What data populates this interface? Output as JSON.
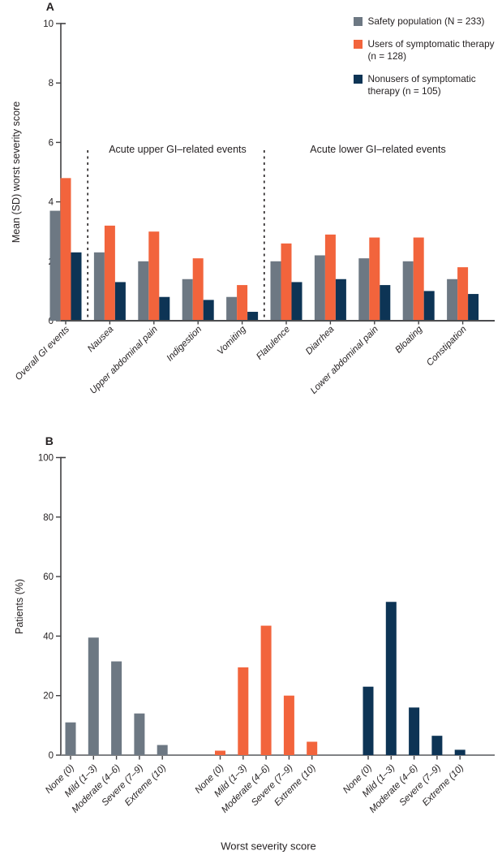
{
  "figure": {
    "colors": {
      "safety": "#6d7883",
      "users": "#f2643c",
      "nonusers": "#0d3455",
      "axis_dark": "#414042",
      "baseline_a": "#4c4d4f",
      "baseline_b": "#808285",
      "divider": "#231f20",
      "text": "#231f20"
    },
    "legend": {
      "items": [
        {
          "series": "safety",
          "lines": [
            "Safety population (N = 233)"
          ]
        },
        {
          "series": "users",
          "lines": [
            "Users of symptomatic therapy",
            "(n = 128)"
          ]
        },
        {
          "series": "nonusers",
          "lines": [
            "Nonusers of symptomatic",
            "therapy (n = 105)"
          ]
        }
      ]
    }
  },
  "chart_data": [
    {
      "panel": "A",
      "type": "bar",
      "title": "",
      "ylabel": "Mean (SD) worst severity score",
      "xlabel": "",
      "ylim": [
        0,
        10
      ],
      "yticks": [
        0,
        2,
        4,
        6,
        8,
        10
      ],
      "grid": false,
      "legend_position": "top-right",
      "categories": [
        "Overall GI events",
        "Nausea",
        "Upper abdominal pain",
        "Indigestion",
        "Vomiting",
        "Flatulence",
        "Diarrhea",
        "Lower abdominal pain",
        "Bloating",
        "Constipation"
      ],
      "series": [
        {
          "name": "Safety population (N = 233)",
          "key": "safety",
          "values": [
            3.7,
            2.3,
            2.0,
            1.4,
            0.8,
            2.0,
            2.2,
            2.1,
            2.0,
            1.4
          ]
        },
        {
          "name": "Users of symptomatic therapy (n = 128)",
          "key": "users",
          "values": [
            4.8,
            3.2,
            3.0,
            2.1,
            1.2,
            2.6,
            2.9,
            2.8,
            2.8,
            1.8
          ]
        },
        {
          "name": "Nonusers of symptomatic therapy (n = 105)",
          "key": "nonusers",
          "values": [
            2.3,
            1.3,
            0.8,
            0.7,
            0.3,
            1.3,
            1.4,
            1.2,
            1.0,
            0.9
          ]
        }
      ],
      "annotations": [
        {
          "text": "Acute upper GI–related events",
          "spans_categories": [
            "Nausea",
            "Vomiting"
          ]
        },
        {
          "text": "Acute lower GI–related events",
          "spans_categories": [
            "Flatulence",
            "Constipation"
          ]
        }
      ],
      "dividers_after_categories": [
        "Overall GI events",
        "Vomiting"
      ]
    },
    {
      "panel": "B",
      "type": "bar",
      "title": "",
      "ylabel": "Patients (%)",
      "xlabel": "Worst severity score",
      "ylim": [
        0,
        100
      ],
      "yticks": [
        0,
        20,
        40,
        60,
        80,
        100
      ],
      "grid": false,
      "layout": "each-series-as-separate-cluster",
      "categories": [
        "None (0)",
        "Mild (1–3)",
        "Moderate (4–6)",
        "Severe (7–9)",
        "Extreme (10)"
      ],
      "series": [
        {
          "name": "Safety population (N = 233)",
          "key": "safety",
          "values": [
            11,
            39.5,
            31.5,
            14,
            3.4
          ]
        },
        {
          "name": "Users of symptomatic therapy (n = 128)",
          "key": "users",
          "values": [
            1.5,
            29.5,
            43.5,
            20,
            4.5
          ]
        },
        {
          "name": "Nonusers of symptomatic therapy (n = 105)",
          "key": "nonusers",
          "values": [
            23,
            51.5,
            16,
            6.5,
            1.8
          ]
        }
      ]
    }
  ]
}
